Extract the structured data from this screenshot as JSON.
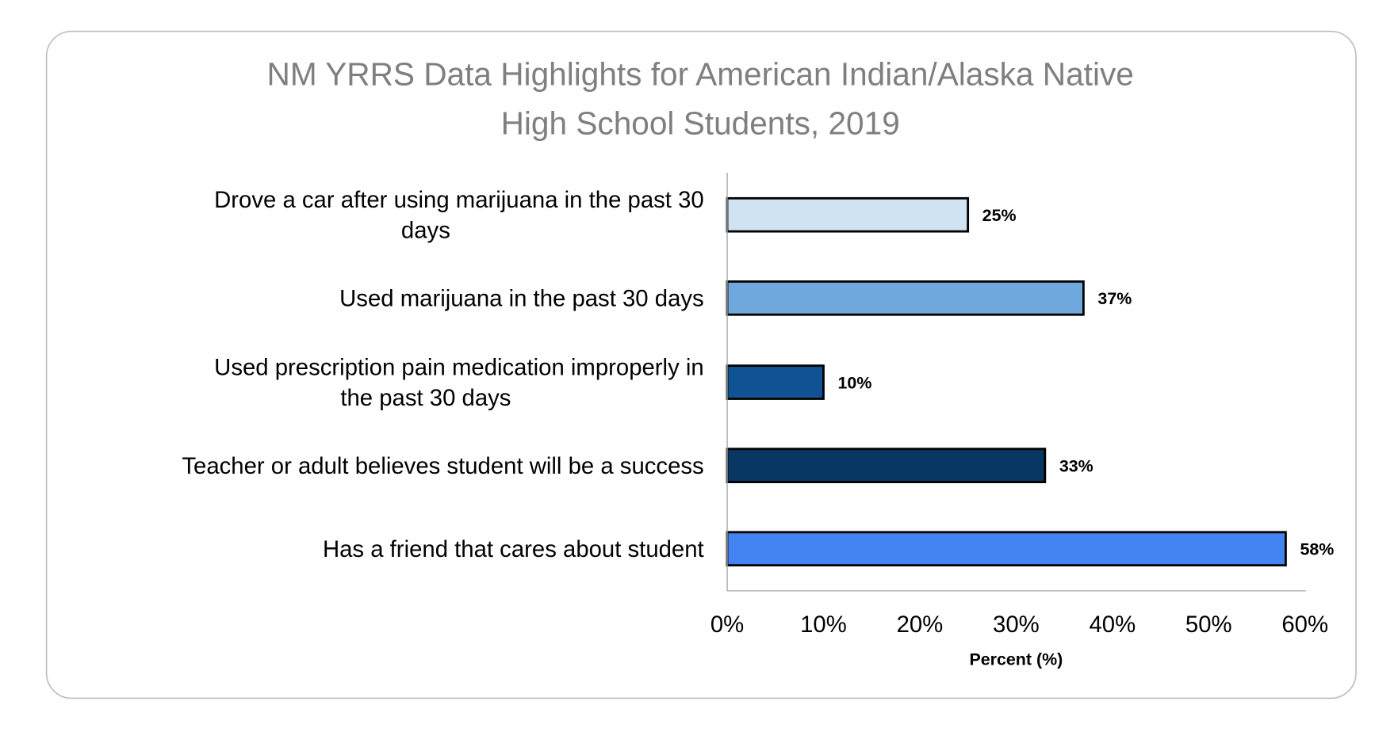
{
  "chart_data": {
    "type": "bar",
    "orientation": "horizontal",
    "title": [
      "NM YRRS Data Highlights for American Indian/Alaska Native",
      "High School Students, 2019"
    ],
    "xlabel": "Percent (%)",
    "ylabel": "",
    "xlim": [
      0,
      60
    ],
    "xticks": [
      "0%",
      "10%",
      "20%",
      "30%",
      "40%",
      "50%",
      "60%"
    ],
    "grid": false,
    "categories": [
      [
        "Drove a car after using marijuana in the past 30",
        "days"
      ],
      [
        "Used marijuana in the past 30 days"
      ],
      [
        "Used prescription pain medication improperly in",
        "the past 30 days"
      ],
      [
        "Teacher or adult believes student will be a success"
      ],
      [
        "Has a friend that cares about student"
      ]
    ],
    "values": [
      25,
      37,
      10,
      33,
      58
    ],
    "data_labels": [
      "25%",
      "37%",
      "10%",
      "33%",
      "58%"
    ],
    "colors": [
      "#D0E3F2",
      "#6FA8DC",
      "#0F5394",
      "#083763",
      "#4383F2"
    ]
  }
}
